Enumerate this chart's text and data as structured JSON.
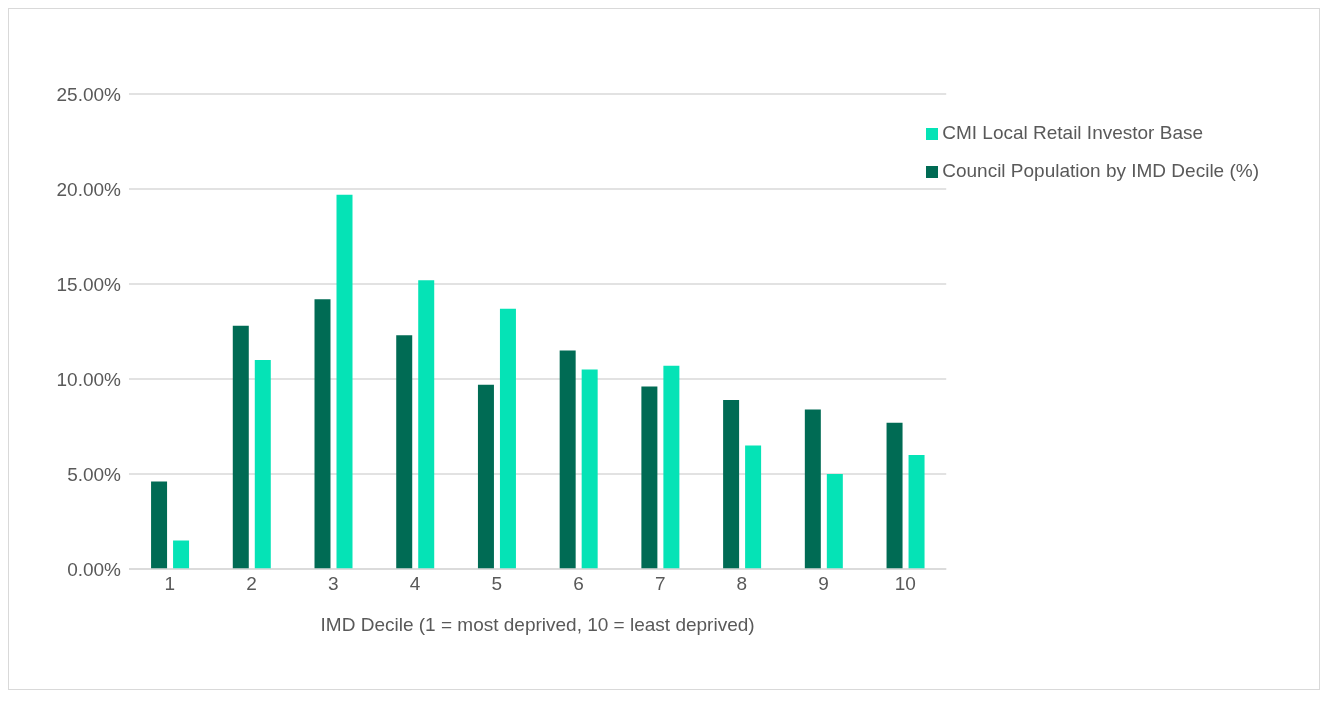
{
  "chart_data": {
    "type": "bar",
    "xlabel": "IMD Decile (1 = most deprived, 10 = least deprived)",
    "categories": [
      "1",
      "2",
      "3",
      "4",
      "5",
      "6",
      "7",
      "8",
      "9",
      "10"
    ],
    "series": [
      {
        "name": "Council Population by IMD Decile (%)",
        "color": "#006b54",
        "values": [
          4.6,
          12.8,
          14.2,
          12.3,
          9.7,
          11.5,
          9.6,
          8.9,
          8.4,
          7.7
        ]
      },
      {
        "name": "CMI Local Retail Investor Base",
        "color": "#05e3b6",
        "values": [
          1.5,
          11.0,
          19.7,
          15.2,
          13.7,
          10.5,
          10.7,
          6.5,
          5.0,
          6.0
        ]
      }
    ],
    "ylim": [
      0,
      25
    ],
    "yticks": [
      {
        "value": 0,
        "label": "0.00%"
      },
      {
        "value": 5,
        "label": "5.00%"
      },
      {
        "value": 10,
        "label": "10.00%"
      },
      {
        "value": 15,
        "label": "15.00%"
      },
      {
        "value": 20,
        "label": "20.00%"
      },
      {
        "value": 25,
        "label": "25.00%"
      }
    ],
    "grid": "y",
    "legend": "top right"
  }
}
